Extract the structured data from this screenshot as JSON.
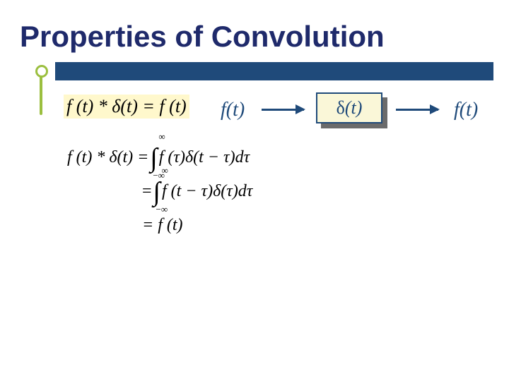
{
  "title": "Properties of Convolution",
  "highlight_equation": "f (t) * δ(t) = f (t)",
  "signal_flow": {
    "input_label": "f(t)",
    "block_label_delta": "δ",
    "block_label_t": "(t)",
    "output_label": "f(t)"
  },
  "derivation": {
    "line1_lhs": "f (t) * δ(t) = ",
    "line1_integrand": "f (τ)δ(t − τ)dτ",
    "line2_eq": "= ",
    "line2_integrand": "f (t − τ)δ(τ)dτ",
    "line3": "= f (t)",
    "int_upper": "∞",
    "int_lower": "−∞"
  },
  "colors": {
    "title_color": "#1f2a6b",
    "bar_color": "#1f4a7a",
    "bullet_color": "#9bbf3f",
    "highlight_bg": "#fff8cc",
    "box_bg": "#faf7d8",
    "box_shadow": "#6b6b6b"
  }
}
